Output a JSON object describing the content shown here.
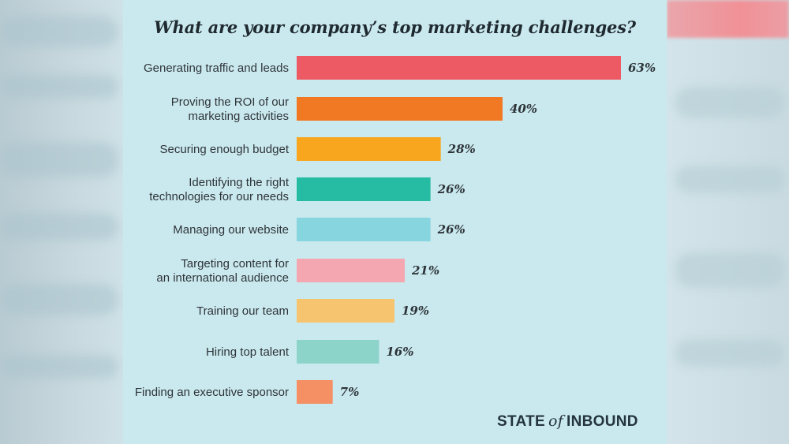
{
  "chart_data": {
    "type": "bar",
    "orientation": "horizontal",
    "title": "What are your company’s top marketing challenges?",
    "categories": [
      [
        "Generating traffic and leads"
      ],
      [
        "Proving the ROI of our",
        "marketing activities"
      ],
      [
        "Securing enough budget"
      ],
      [
        "Identifying the right",
        "technologies for our needs"
      ],
      [
        "Managing our website"
      ],
      [
        "Targeting content for",
        "an international audience"
      ],
      [
        "Training our team"
      ],
      [
        "Hiring top talent"
      ],
      [
        "Finding an executive sponsor"
      ]
    ],
    "values": [
      63,
      40,
      28,
      26,
      26,
      21,
      19,
      16,
      7
    ],
    "value_labels": [
      "63%",
      "40%",
      "28%",
      "26%",
      "26%",
      "21%",
      "19%",
      "16%",
      "7%"
    ],
    "colors": [
      "#ee5a63",
      "#f27924",
      "#f8a61d",
      "#25bca3",
      "#86d5df",
      "#f5a7b1",
      "#f6c46e",
      "#8cd3ca",
      "#f58f64"
    ],
    "xlim": [
      0,
      63
    ],
    "grid": false,
    "legend": "none"
  },
  "brand": {
    "left": "STATE",
    "middle": "of",
    "right": "INBOUND"
  }
}
